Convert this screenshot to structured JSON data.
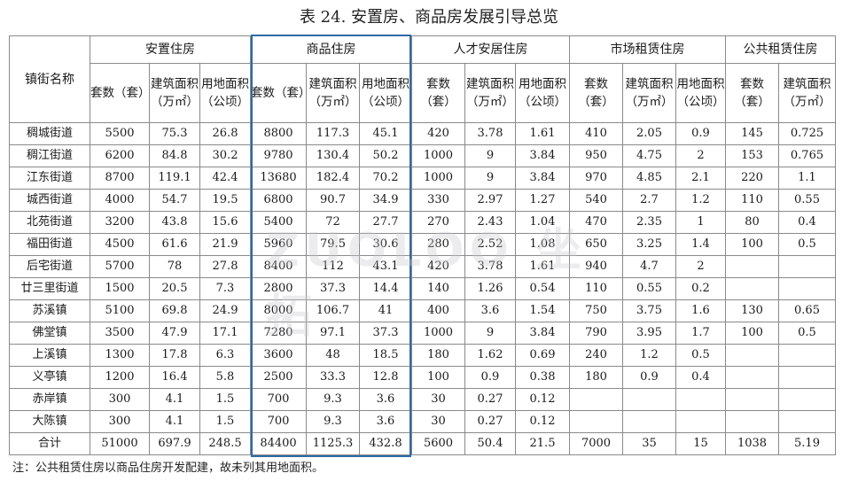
{
  "title": "表 24. 安置房、商品房发展引导总览",
  "header": {
    "town_col": "镇街名称",
    "groups": [
      "安置住房",
      "商品住房",
      "人才安居住房",
      "市场租赁住房",
      "公共租赁住房"
    ],
    "sub_units": "套数（套）",
    "sub_area": "建筑面积（万㎡）",
    "sub_land": "用地面积（公顷）"
  },
  "rows": [
    [
      "稠城街道",
      "5500",
      "75.3",
      "26.8",
      "8800",
      "117.3",
      "45.1",
      "420",
      "3.78",
      "1.61",
      "410",
      "2.05",
      "0.9",
      "145",
      "0.725"
    ],
    [
      "稠江街道",
      "6200",
      "84.8",
      "30.2",
      "9780",
      "130.4",
      "50.2",
      "1000",
      "9",
      "3.84",
      "950",
      "4.75",
      "2",
      "153",
      "0.765"
    ],
    [
      "江东街道",
      "8700",
      "119.1",
      "42.4",
      "13680",
      "182.4",
      "70.2",
      "1000",
      "9",
      "3.84",
      "970",
      "4.85",
      "2.1",
      "220",
      "1.1"
    ],
    [
      "城西街道",
      "4000",
      "54.7",
      "19.5",
      "6800",
      "90.7",
      "34.9",
      "330",
      "2.97",
      "1.27",
      "540",
      "2.7",
      "1.2",
      "110",
      "0.55"
    ],
    [
      "北苑街道",
      "3200",
      "43.8",
      "15.6",
      "5400",
      "72",
      "27.7",
      "270",
      "2.43",
      "1.04",
      "470",
      "2.35",
      "1",
      "80",
      "0.4"
    ],
    [
      "福田街道",
      "4500",
      "61.6",
      "21.9",
      "5960",
      "79.5",
      "30.6",
      "280",
      "2.52",
      "1.08",
      "650",
      "3.25",
      "1.4",
      "100",
      "0.5"
    ],
    [
      "后宅街道",
      "5700",
      "78",
      "27.8",
      "8400",
      "112",
      "43.1",
      "420",
      "3.78",
      "1.61",
      "940",
      "4.7",
      "2",
      "",
      ""
    ],
    [
      "廿三里街道",
      "1500",
      "20.5",
      "7.3",
      "2800",
      "37.3",
      "14.4",
      "140",
      "1.26",
      "0.54",
      "110",
      "0.55",
      "0.2",
      "",
      ""
    ],
    [
      "苏溪镇",
      "5100",
      "69.8",
      "24.9",
      "8000",
      "106.7",
      "41",
      "400",
      "3.6",
      "1.54",
      "750",
      "3.75",
      "1.6",
      "130",
      "0.65"
    ],
    [
      "佛堂镇",
      "3500",
      "47.9",
      "17.1",
      "7280",
      "97.1",
      "37.3",
      "1000",
      "9",
      "3.84",
      "790",
      "3.95",
      "1.7",
      "100",
      "0.5"
    ],
    [
      "上溪镇",
      "1300",
      "17.8",
      "6.3",
      "3600",
      "48",
      "18.5",
      "180",
      "1.62",
      "0.69",
      "240",
      "1.2",
      "0.5",
      "",
      ""
    ],
    [
      "义亭镇",
      "1200",
      "16.4",
      "5.8",
      "2500",
      "33.3",
      "12.8",
      "100",
      "0.9",
      "0.38",
      "180",
      "0.9",
      "0.4",
      "",
      ""
    ],
    [
      "赤岸镇",
      "300",
      "4.1",
      "1.5",
      "700",
      "9.3",
      "3.6",
      "30",
      "0.27",
      "0.12",
      "",
      "",
      "",
      "",
      ""
    ],
    [
      "大陈镇",
      "300",
      "4.1",
      "1.5",
      "700",
      "9.3",
      "3.6",
      "30",
      "0.27",
      "0.12",
      "",
      "",
      "",
      "",
      ""
    ],
    [
      "合计",
      "51000",
      "697.9",
      "248.5",
      "84400",
      "1125.3",
      "432.8",
      "5600",
      "50.4",
      "21.5",
      "7000",
      "35",
      "15",
      "1038",
      "5.19"
    ]
  ],
  "note": "注：公共租赁住房以商品住房开发配建，故未列其用地面积。",
  "watermark": "ZUOLOO 坐拓",
  "colors": {
    "highlight_border": "#2d6aa6",
    "grid_line": "#8a8a8a"
  }
}
